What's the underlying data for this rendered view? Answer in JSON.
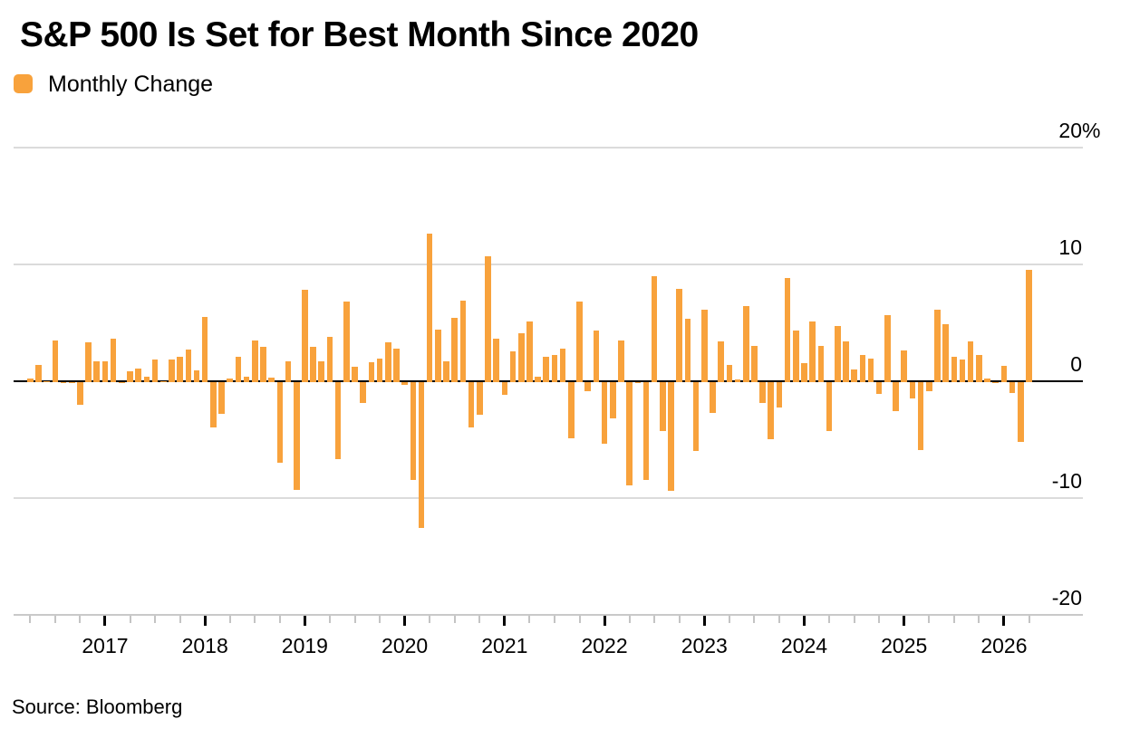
{
  "title": "S&P 500 Is Set for Best Month Since 2020",
  "legend": {
    "label": "Monthly Change",
    "swatch_color": "#F8A23C"
  },
  "source": "Source: Bloomberg",
  "colors": {
    "bar": "#F8A23C",
    "gridline": "#DBDBDB",
    "zero_line": "#000000",
    "axis_line": "#C9C9C9",
    "quarter_tick": "#C4C4C4",
    "year_tick": "#000000"
  },
  "chart_data": {
    "type": "bar",
    "title": "S&P 500 Is Set for Best Month Since 2020",
    "series_name": "Monthly Change",
    "unit": "%",
    "x_interval": "month",
    "x_start_month": "2016-04",
    "x_end_month": "2026-04",
    "ylim": [
      -20,
      20
    ],
    "grid": "horizontal",
    "legend_position": "top-left",
    "y_axis": {
      "side": "right",
      "tick_values": [
        20,
        10,
        0,
        -10,
        -20
      ],
      "tick_labels": [
        "20%",
        "10",
        "0",
        "-10",
        "-20"
      ]
    },
    "x_axis": {
      "tick_years": [
        "2017",
        "2018",
        "2019",
        "2020",
        "2021",
        "2022",
        "2023",
        "2024",
        "2025",
        "2026"
      ],
      "minor_ticks": "quarterly"
    },
    "values_by_year": {
      "2016": [
        0.3,
        1.5,
        0.1,
        3.6,
        -0.1,
        -0.1,
        -1.9,
        3.4,
        1.8
      ],
      "2017": [
        1.8,
        3.7,
        0.0,
        0.9,
        1.2,
        0.5,
        1.9,
        0.1,
        1.9,
        2.2,
        2.8,
        1.0
      ],
      "2018": [
        5.6,
        -3.9,
        -2.7,
        0.3,
        2.2,
        0.5,
        3.6,
        3.0,
        0.4,
        -6.9,
        1.8,
        -9.2
      ],
      "2019": [
        7.9,
        3.0,
        1.8,
        3.9,
        -6.6,
        6.9,
        1.3,
        -1.8,
        1.7,
        2.0,
        3.4,
        2.9
      ],
      "2020": [
        -0.2,
        -8.4,
        -12.5,
        12.7,
        4.5,
        1.8,
        5.5,
        7.0,
        -3.9,
        -2.8,
        10.8,
        3.7
      ],
      "2021": [
        -1.1,
        2.6,
        4.2,
        5.2,
        0.5,
        2.2,
        2.3,
        2.9,
        -4.8,
        6.9,
        -0.8,
        4.4
      ],
      "2022": [
        -5.3,
        -3.1,
        3.6,
        -8.8,
        0.0,
        -8.4,
        9.1,
        -4.2,
        -9.3,
        8.0,
        5.4,
        -5.9
      ],
      "2023": [
        6.2,
        -2.6,
        3.5,
        1.5,
        0.2,
        6.5,
        3.1,
        -1.8,
        -4.9,
        -2.2,
        8.9,
        4.4
      ],
      "2024": [
        1.6,
        5.2,
        3.1,
        -4.2,
        4.8,
        3.5,
        1.1,
        2.3,
        2.0,
        -1.0,
        5.7,
        -2.5
      ],
      "2025": [
        2.7,
        -1.4,
        -5.8,
        -0.8,
        6.2,
        5.0,
        2.2,
        1.9,
        3.5,
        2.3,
        0.3,
        -0.1
      ],
      "2026": [
        1.4,
        -0.9,
        -5.1,
        9.6
      ]
    },
    "year_start_months": {
      "2016": 4,
      "2026_end": 4
    }
  }
}
